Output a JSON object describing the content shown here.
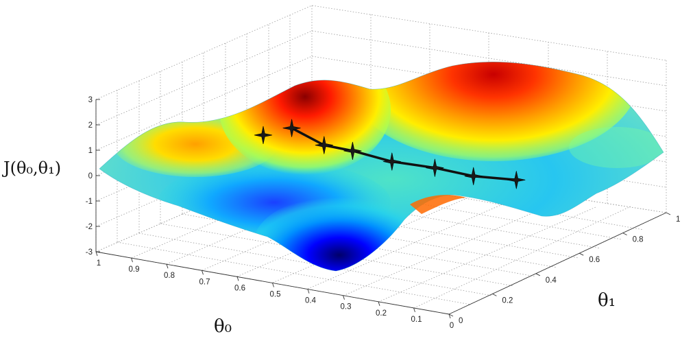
{
  "chart_data": {
    "type": "surface",
    "title": "",
    "zlabel": "J(θ₀,θ₁)",
    "xlabel": "θ₀",
    "ylabel": "θ₁",
    "x_ticks": [
      "1",
      "0.9",
      "0.8",
      "0.7",
      "0.6",
      "0.5",
      "0.4",
      "0.3",
      "0.2",
      "0.1",
      "0"
    ],
    "y_ticks": [
      "0",
      "0.2",
      "0.4",
      "0.6",
      "0.8",
      "1"
    ],
    "z_ticks": [
      "3",
      "2",
      "1",
      "0",
      "-1",
      "-2",
      "-3"
    ],
    "xlim": [
      0,
      1
    ],
    "ylim": [
      0,
      1
    ],
    "zlim": [
      -3,
      3
    ],
    "grid": true,
    "colormap": [
      "#00007f",
      "#0000ff",
      "#00bfff",
      "#40e0d0",
      "#7fff7f",
      "#ffff00",
      "#ff8000",
      "#ff0000",
      "#7f0000"
    ],
    "descent_path": {
      "color": "#111111",
      "marker": "star",
      "points": [
        {
          "theta0": 0.6,
          "theta1": 0.12,
          "J": 2.1
        },
        {
          "theta0": 0.55,
          "theta1": 0.17,
          "J": 2.3
        },
        {
          "theta0": 0.52,
          "theta1": 0.27,
          "J": 1.3
        },
        {
          "theta0": 0.47,
          "theta1": 0.32,
          "J": 1.0
        },
        {
          "theta0": 0.42,
          "theta1": 0.42,
          "J": 0.3
        },
        {
          "theta0": 0.36,
          "theta1": 0.52,
          "J": -0.2
        },
        {
          "theta0": 0.3,
          "theta1": 0.6,
          "J": -0.7
        },
        {
          "theta0": 0.24,
          "theta1": 0.7,
          "J": -1.1
        }
      ]
    }
  }
}
